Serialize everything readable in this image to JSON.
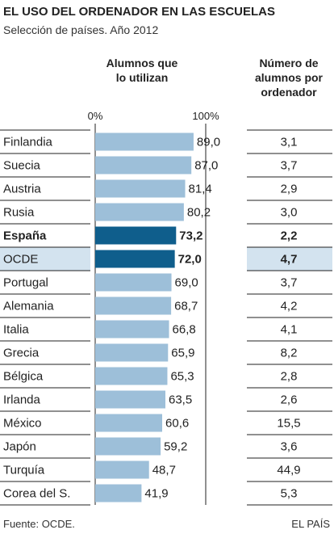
{
  "title": "EL USO DEL ORDENADOR EN LAS ESCUELAS",
  "subtitle": "Selección de países. Año 2012",
  "headers": {
    "bars": [
      "Alumnos que",
      "lo utilizan"
    ],
    "ratio": [
      "Número de",
      "alumnos por",
      "ordenador"
    ]
  },
  "axis": {
    "min_label": "0%",
    "max_label": "100%"
  },
  "footer": {
    "source": "Fuente: OCDE.",
    "credit": "EL PAÍS"
  },
  "colors": {
    "bar": "#9dbfd9",
    "bar_highlight": "#0f5e8c",
    "row_highlight": "#d3e3ef",
    "rule": "#222222"
  },
  "chart_data": {
    "type": "bar",
    "orientation": "horizontal",
    "xlim": [
      0,
      100
    ],
    "columns": [
      "Alumnos que lo utilizan",
      "Número de alumnos por ordenador"
    ],
    "rows": [
      {
        "country": "Finlandia",
        "pct": "89,0",
        "ratio": "3,1"
      },
      {
        "country": "Suecia",
        "pct": "87,0",
        "ratio": "3,7"
      },
      {
        "country": "Austria",
        "pct": "81,4",
        "ratio": "2,9"
      },
      {
        "country": "Rusia",
        "pct": "80,2",
        "ratio": "3,0"
      },
      {
        "country": "España",
        "pct": "73,2",
        "ratio": "2,2",
        "bold": true,
        "highlight": true
      },
      {
        "country": "OCDE",
        "pct": "72,0",
        "ratio": "4,7",
        "bold_values": true,
        "highlight": true,
        "row_shade": true
      },
      {
        "country": "Portugal",
        "pct": "69,0",
        "ratio": "3,7"
      },
      {
        "country": "Alemania",
        "pct": "68,7",
        "ratio": "4,2"
      },
      {
        "country": "Italia",
        "pct": "66,8",
        "ratio": "4,1"
      },
      {
        "country": "Grecia",
        "pct": "65,9",
        "ratio": "8,2"
      },
      {
        "country": "Bélgica",
        "pct": "65,3",
        "ratio": "2,8"
      },
      {
        "country": "Irlanda",
        "pct": "63,5",
        "ratio": "2,6"
      },
      {
        "country": "México",
        "pct": "60,6",
        "ratio": "15,5"
      },
      {
        "country": "Japón",
        "pct": "59,2",
        "ratio": "3,6"
      },
      {
        "country": "Turquía",
        "pct": "48,7",
        "ratio": "44,9"
      },
      {
        "country": "Corea del S.",
        "pct": "41,9",
        "ratio": "5,3"
      }
    ]
  }
}
